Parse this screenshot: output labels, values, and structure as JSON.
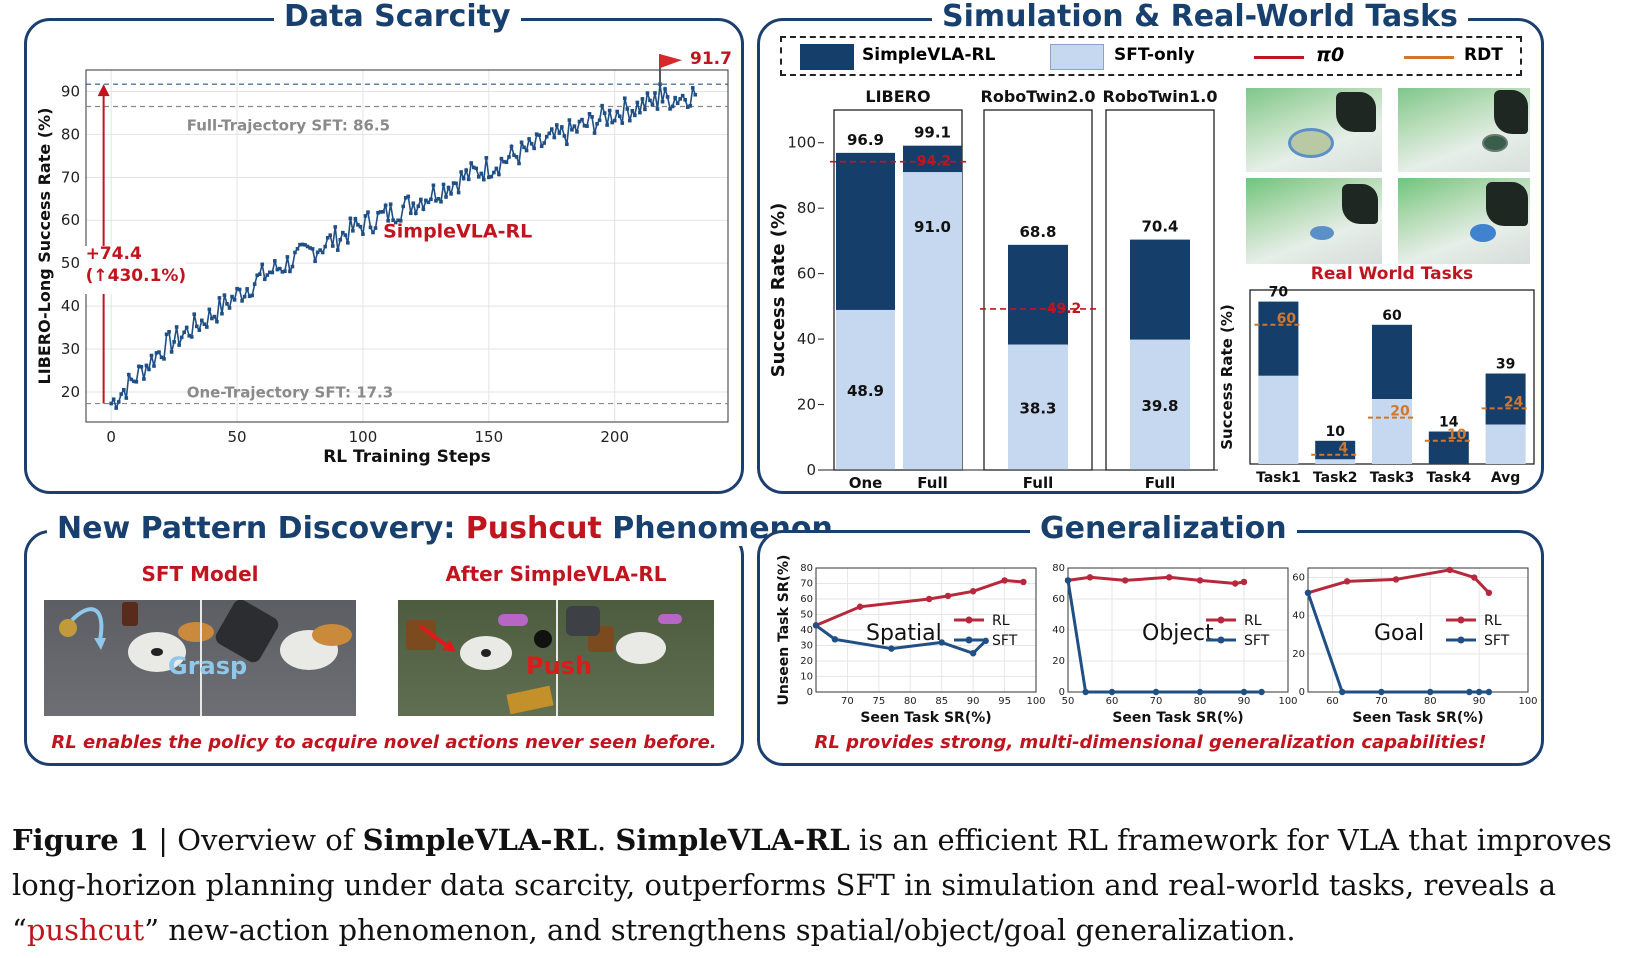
{
  "colors": {
    "rl": "#163e6b",
    "sft": "#c6d8f0",
    "red": "#c0151f",
    "orange": "#d2772a",
    "gen_rl": "#b7283c",
    "gen_sft": "#1f4f84"
  },
  "panels": {
    "data_scarcity": {
      "title": "Data Scarcity",
      "chart_data": {
        "type": "line",
        "xlabel": "RL Training Steps",
        "ylabel": "LIBERO-Long Success Rate (%)",
        "xlim": [
          -10,
          245
        ],
        "ylim": [
          13,
          95
        ],
        "xticks": [
          "0",
          "50",
          "100",
          "150",
          "200"
        ],
        "yticks": [
          "20",
          "30",
          "40",
          "50",
          "60",
          "70",
          "80",
          "90"
        ],
        "series_label": "SimpleVLA-RL",
        "ref_full_label": "Full-Trajectory SFT: 86.5",
        "ref_full_value": 86.5,
        "ref_one_label": "One-Trajectory SFT: 17.3",
        "ref_one_value": 17.3,
        "peak_label": "91.7",
        "peak_value": 91.7,
        "gain_label": "+74.4",
        "gain_pct_label": "(↑430.1%)",
        "series": [
          {
            "name": "SimpleVLA-RL",
            "points": [
              [
                0,
                17.3
              ],
              [
                20,
                30
              ],
              [
                40,
                38
              ],
              [
                60,
                47
              ],
              [
                80,
                53
              ],
              [
                100,
                59
              ],
              [
                120,
                64
              ],
              [
                140,
                70
              ],
              [
                160,
                75
              ],
              [
                180,
                80
              ],
              [
                200,
                85
              ],
              [
                218,
                88
              ],
              [
                232,
                89.5
              ]
            ]
          }
        ]
      }
    },
    "sim_real": {
      "title": "Simulation & Real-World Tasks",
      "legend": [
        "SimpleVLA-RL",
        "SFT-only",
        "π0",
        "RDT"
      ],
      "chart_data": {
        "type": "bar",
        "ylabel": "Success Rate (%)",
        "ylim": [
          0,
          110
        ],
        "yticks": [
          "0",
          "20",
          "40",
          "60",
          "80",
          "100"
        ],
        "groups": [
          {
            "title": "LIBERO",
            "bars": [
              {
                "label": "One",
                "sft": 48.9,
                "rl": 96.9,
                "sft_label": "48.9",
                "rl_label": "96.9"
              },
              {
                "label": "Full",
                "sft": 91.0,
                "rl": 99.1,
                "sft_label": "91.0",
                "rl_label": "99.1"
              }
            ],
            "pi0": 94.2,
            "pi0_label": "94.2"
          },
          {
            "title": "RoboTwin2.0",
            "bars": [
              {
                "label": "Full",
                "sft": 38.3,
                "rl": 68.8,
                "sft_label": "38.3",
                "rl_label": "68.8"
              }
            ],
            "pi0": 49.2,
            "pi0_label": "49.2"
          },
          {
            "title": "RoboTwin1.0",
            "bars": [
              {
                "label": "Full",
                "sft": 39.8,
                "rl": 70.4,
                "sft_label": "39.8",
                "rl_label": "70.4"
              }
            ]
          }
        ]
      },
      "real_world": {
        "title": "Real World Tasks",
        "chart_data": {
          "type": "bar",
          "ylabel": "Success Rate (%)",
          "ylim": [
            0,
            75
          ],
          "categories": [
            "Task1",
            "Task2",
            "Task3",
            "Task4",
            "Avg"
          ],
          "rl": [
            70,
            10,
            60,
            14,
            39
          ],
          "rl_labels": [
            "70",
            "10",
            "60",
            "14",
            "39"
          ],
          "sft": [
            38,
            2,
            28,
            0,
            17
          ],
          "rdt": [
            60,
            4,
            20,
            10,
            24
          ],
          "rdt_labels": [
            "60",
            "4",
            "20",
            "10",
            "24"
          ]
        }
      }
    },
    "pushcut": {
      "title_main": "New Pattern Discovery: ",
      "title_highlight": "Pushcut",
      "title_end": " Phenomenon",
      "left_label": "SFT Model",
      "right_label": "After SimpleVLA-RL",
      "grasp_label": "Grasp",
      "push_label": "Push",
      "banner": "RL enables the policy to acquire novel actions never seen before."
    },
    "generalization": {
      "title": "Generalization",
      "banner": "RL provides strong, multi-dimensional generalization capabilities!",
      "ylabel": "Unseen Task SR(%)",
      "xlabel": "Seen Task SR(%)",
      "legend_rl": "RL",
      "legend_sft": "SFT",
      "chart_data": [
        {
          "type": "line",
          "name": "Spatial",
          "xlim": [
            65,
            100
          ],
          "ylim": [
            0,
            80
          ],
          "xticks": [
            70,
            75,
            80,
            85,
            90,
            95,
            100
          ],
          "yticks": [
            0,
            10,
            20,
            30,
            40,
            50,
            60,
            70,
            80
          ],
          "rl": [
            [
              65,
              43
            ],
            [
              72,
              55
            ],
            [
              83,
              60
            ],
            [
              86,
              62
            ],
            [
              90,
              65
            ],
            [
              95,
              72
            ],
            [
              98,
              71
            ]
          ],
          "sft": [
            [
              65,
              43
            ],
            [
              68,
              34
            ],
            [
              77,
              28
            ],
            [
              85,
              32
            ],
            [
              90,
              25
            ],
            [
              92,
              33
            ]
          ]
        },
        {
          "type": "line",
          "name": "Object",
          "xlim": [
            50,
            100
          ],
          "ylim": [
            0,
            80
          ],
          "xticks": [
            50,
            60,
            70,
            80,
            90,
            100
          ],
          "yticks": [
            0,
            20,
            40,
            60,
            80
          ],
          "rl": [
            [
              50,
              72
            ],
            [
              55,
              74
            ],
            [
              63,
              72
            ],
            [
              73,
              74
            ],
            [
              80,
              72
            ],
            [
              88,
              70
            ],
            [
              90,
              71
            ]
          ],
          "sft": [
            [
              50,
              72
            ],
            [
              54,
              0
            ],
            [
              60,
              0
            ],
            [
              70,
              0
            ],
            [
              80,
              0
            ],
            [
              90,
              0
            ],
            [
              94,
              0
            ]
          ]
        },
        {
          "type": "line",
          "name": "Goal",
          "xlim": [
            55,
            100
          ],
          "ylim": [
            0,
            65
          ],
          "xticks": [
            60,
            70,
            80,
            90,
            100
          ],
          "yticks": [
            0,
            20,
            40,
            60
          ],
          "rl": [
            [
              55,
              52
            ],
            [
              63,
              58
            ],
            [
              73,
              59
            ],
            [
              84,
              64
            ],
            [
              89,
              60
            ],
            [
              92,
              52
            ]
          ],
          "sft": [
            [
              55,
              52
            ],
            [
              62,
              0
            ],
            [
              70,
              0
            ],
            [
              80,
              0
            ],
            [
              88,
              0
            ],
            [
              90,
              0
            ],
            [
              92,
              0
            ]
          ]
        }
      ]
    }
  },
  "caption": {
    "label": "Figure 1",
    "sep": " | Overview of ",
    "name1": "SimpleVLA-RL",
    "text1": ". ",
    "name2": "SimpleVLA-RL",
    "text2": " is an efficient RL framework for VLA that improves long-horizon planning under data scarcity, outperforms SFT in simulation and real-world tasks, reveals a “",
    "highlight": "pushcut",
    "text3": "” new-action phenomenon, and strengthens spatial/object/goal generalization."
  }
}
